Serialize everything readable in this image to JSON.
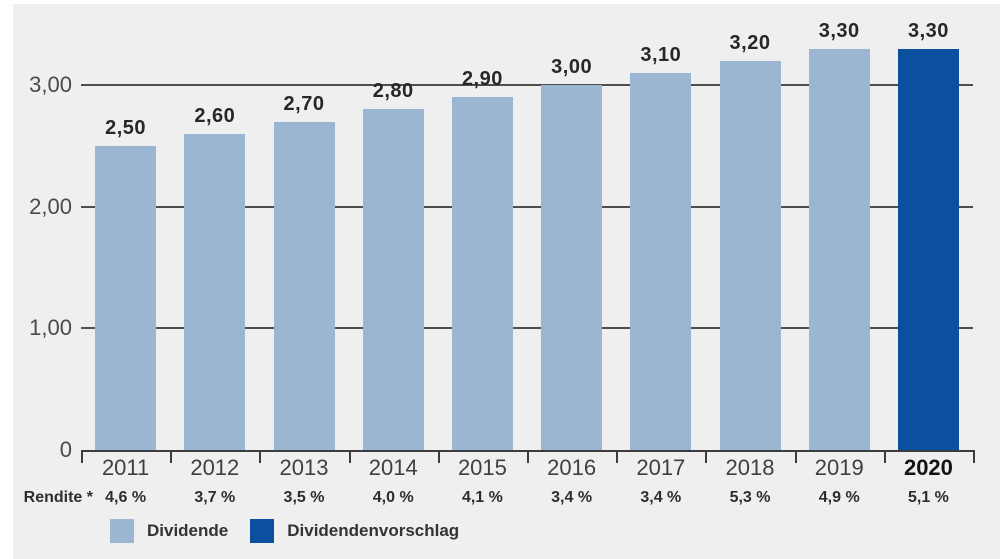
{
  "chart_data": {
    "type": "bar",
    "title": "",
    "xlabel": "",
    "ylabel": "",
    "categories": [
      "2011",
      "2012",
      "2013",
      "2014",
      "2015",
      "2016",
      "2017",
      "2018",
      "2019",
      "2020"
    ],
    "values": [
      2.5,
      2.6,
      2.7,
      2.8,
      2.9,
      3.0,
      3.1,
      3.2,
      3.3,
      3.3
    ],
    "value_labels": [
      "2,50",
      "2,60",
      "2,70",
      "2,80",
      "2,90",
      "3,00",
      "3,10",
      "3,20",
      "3,30",
      "3,30"
    ],
    "highlight_index": 9,
    "series": [
      {
        "name": "Dividende",
        "indices": [
          0,
          1,
          2,
          3,
          4,
          5,
          6,
          7,
          8
        ],
        "color": "#9ab6d3"
      },
      {
        "name": "Dividendenvorschlag",
        "indices": [
          9
        ],
        "color": "#0a509e"
      }
    ],
    "y_ticks": [
      {
        "value": 3,
        "label": "3,00"
      },
      {
        "value": 2,
        "label": "2,00"
      },
      {
        "value": 1,
        "label": "1,00"
      },
      {
        "value": 0,
        "label": "0"
      }
    ],
    "ylim": [
      0,
      3.7
    ],
    "grid": "horizontal",
    "legend_position": "bottom-left",
    "rendite_row": {
      "label": "Rendite *",
      "values": [
        "4,6 %",
        "3,7 %",
        "3,5 %",
        "4,0 %",
        "4,1 %",
        "3,4 %",
        "3,4 %",
        "5,3 %",
        "4,9 %",
        "5,1 %"
      ]
    }
  },
  "legend": {
    "items": [
      {
        "label": "Dividende",
        "color": "#9ab6d3"
      },
      {
        "label": "Dividendenvorschlag",
        "color": "#0a509e"
      }
    ]
  },
  "colors": {
    "background": "#efefef",
    "bar_light": "#9ab6d3",
    "bar_dark": "#0a509e",
    "gridline": "#4d4d4d",
    "axis": "#3c3c3c"
  }
}
